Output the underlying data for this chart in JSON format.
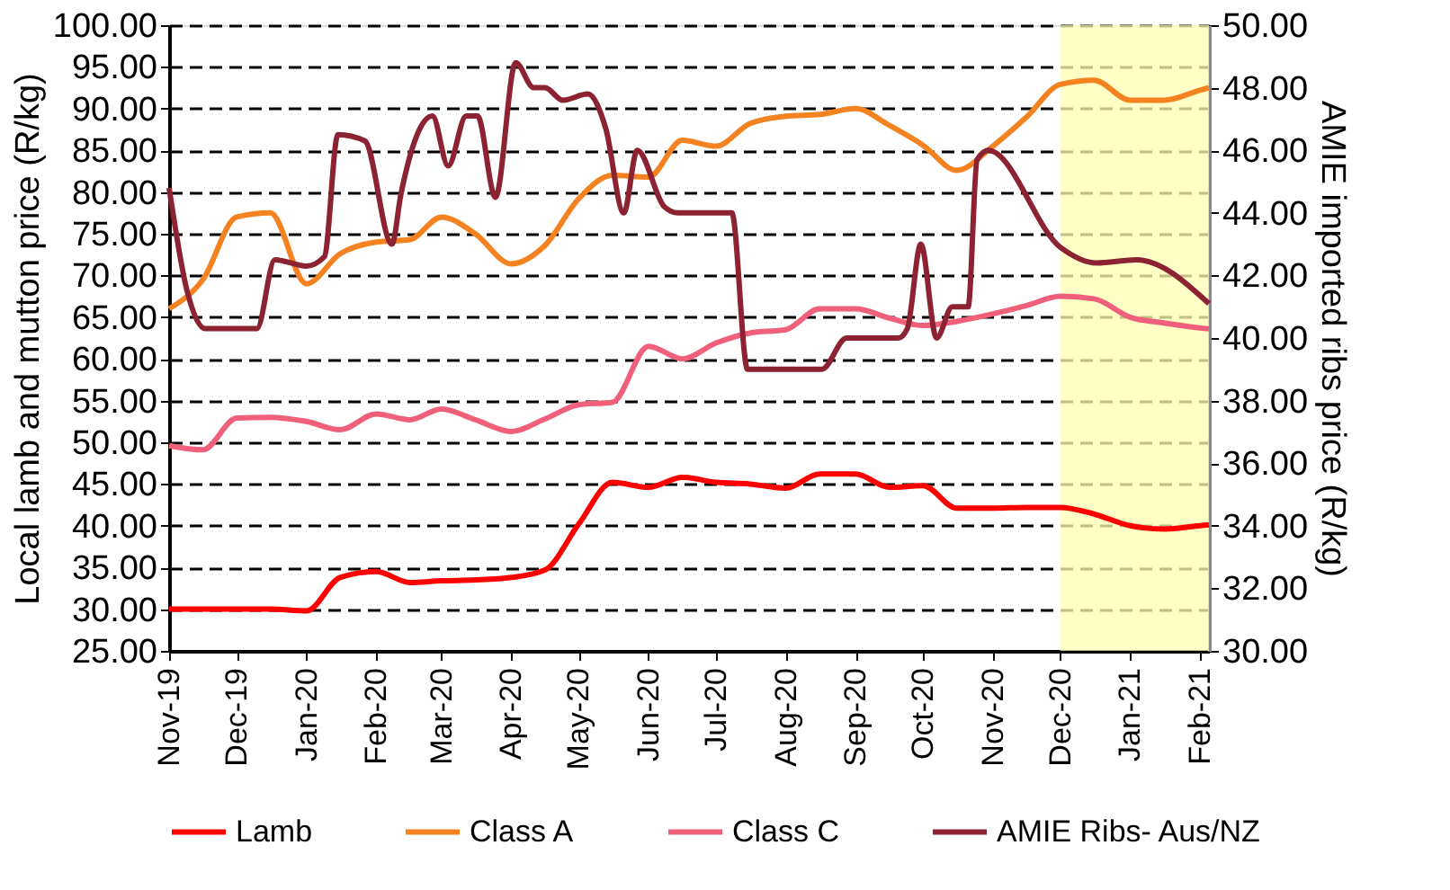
{
  "chart_data": {
    "type": "line",
    "ylabel": "Local lamb and mutton price (R/kg)",
    "y2label": "AMIE imported ribs price (R/kg)",
    "x": [
      "2019-11-01",
      "2019-11-16",
      "2019-12-01",
      "2019-12-16",
      "2020-01-01",
      "2020-01-16",
      "2020-02-01",
      "2020-02-16",
      "2020-03-01",
      "2020-03-16",
      "2020-04-01",
      "2020-04-16",
      "2020-05-01",
      "2020-05-16",
      "2020-06-01",
      "2020-06-16",
      "2020-07-01",
      "2020-07-16",
      "2020-08-01",
      "2020-08-16",
      "2020-09-01",
      "2020-09-16",
      "2020-10-01",
      "2020-10-16",
      "2020-11-01",
      "2020-11-16",
      "2020-12-01",
      "2020-12-16",
      "2021-01-01",
      "2021-01-16",
      "2021-02-01",
      "2021-02-05"
    ],
    "series": [
      {
        "name": "Lamb",
        "color": "#ff0000",
        "axis": "y",
        "values": [
          30.0,
          30.0,
          30.0,
          30.0,
          29.8,
          33.8,
          34.5,
          33.2,
          33.4,
          33.5,
          33.8,
          34.7,
          40.2,
          45.2,
          44.6,
          45.8,
          45.2,
          45.0,
          44.5,
          46.2,
          46.2,
          44.6,
          44.8,
          42.1,
          42.1,
          42.2,
          42.2,
          41.4,
          40.0,
          39.6,
          40.0,
          40.1
        ]
      },
      {
        "name": "Class A",
        "color": "#f58220",
        "axis": "y",
        "values": [
          66.0,
          69.5,
          77.0,
          77.5,
          69.0,
          72.6,
          74.0,
          74.3,
          77.0,
          75.0,
          71.4,
          73.6,
          79.2,
          82.0,
          81.8,
          86.2,
          85.5,
          88.2,
          89.1,
          89.3,
          90.0,
          88.0,
          85.6,
          82.6,
          85.5,
          89.0,
          92.9,
          93.4,
          91.0,
          91.0,
          92.2,
          92.5
        ]
      },
      {
        "name": "Class C",
        "color": "#f0607a",
        "axis": "y",
        "values": [
          49.6,
          49.1,
          52.9,
          53.0,
          52.5,
          51.5,
          53.4,
          52.7,
          54.0,
          52.7,
          51.3,
          52.8,
          54.5,
          54.8,
          61.5,
          60.0,
          61.9,
          63.1,
          63.5,
          66.0,
          66.0,
          64.9,
          64.0,
          64.5,
          65.4,
          66.4,
          67.5,
          67.2,
          65.0,
          64.3,
          63.7,
          63.6
        ]
      },
      {
        "name": "AMIE Ribs- Aus/NZ",
        "color": "#8b2332",
        "axis": "y2",
        "x": [
          "2019-11-01",
          "2019-11-09",
          "2019-11-17",
          "2019-12-10",
          "2019-12-18",
          "2020-01-01",
          "2020-01-09",
          "2020-01-15",
          "2020-01-27",
          "2020-02-08",
          "2020-02-12",
          "2020-02-26",
          "2020-03-04",
          "2020-03-12",
          "2020-03-17",
          "2020-03-25",
          "2020-04-03",
          "2020-04-11",
          "2020-04-16",
          "2020-04-24",
          "2020-05-05",
          "2020-05-13",
          "2020-05-21",
          "2020-05-27",
          "2020-06-08",
          "2020-06-14",
          "2020-07-08",
          "2020-07-15",
          "2020-08-17",
          "2020-08-28",
          "2020-09-20",
          "2020-09-24",
          "2020-09-30",
          "2020-10-07",
          "2020-10-14",
          "2020-10-21",
          "2020-10-25",
          "2020-10-30",
          "2020-12-01",
          "2020-12-17",
          "2021-01-04",
          "2021-02-05"
        ],
        "values": [
          44.8,
          41.5,
          40.3,
          40.3,
          42.5,
          42.3,
          42.6,
          46.5,
          46.3,
          43.0,
          44.6,
          47.1,
          45.5,
          47.1,
          47.1,
          44.5,
          48.8,
          48.0,
          48.0,
          47.6,
          47.8,
          46.7,
          44.0,
          46.0,
          44.2,
          44.0,
          44.0,
          39.0,
          39.0,
          40.0,
          40.0,
          40.3,
          43.0,
          40.0,
          41.0,
          41.0,
          45.7,
          46.0,
          42.9,
          42.4,
          42.5,
          41.1
        ]
      }
    ],
    "xlim": [
      "2019-11-01",
      "2021-02-05"
    ],
    "xticks": [
      {
        "value": "2019-11-01",
        "label": "Nov-19"
      },
      {
        "value": "2019-12-01",
        "label": "Dec-19"
      },
      {
        "value": "2020-01-01",
        "label": "Jan-20"
      },
      {
        "value": "2020-02-01",
        "label": "Feb-20"
      },
      {
        "value": "2020-03-01",
        "label": "Mar-20"
      },
      {
        "value": "2020-04-01",
        "label": "Apr-20"
      },
      {
        "value": "2020-05-01",
        "label": "May-20"
      },
      {
        "value": "2020-06-01",
        "label": "Jun-20"
      },
      {
        "value": "2020-07-01",
        "label": "Jul-20"
      },
      {
        "value": "2020-08-01",
        "label": "Aug-20"
      },
      {
        "value": "2020-09-01",
        "label": "Sep-20"
      },
      {
        "value": "2020-10-01",
        "label": "Oct-20"
      },
      {
        "value": "2020-11-01",
        "label": "Nov-20"
      },
      {
        "value": "2020-12-01",
        "label": "Dec-20"
      },
      {
        "value": "2021-01-01",
        "label": "Jan-21"
      },
      {
        "value": "2021-02-01",
        "label": "Feb-21"
      }
    ],
    "ylim": [
      25,
      100
    ],
    "yticks": [
      {
        "value": 25,
        "label": "25.00"
      },
      {
        "value": 30,
        "label": "30.00"
      },
      {
        "value": 35,
        "label": "35.00"
      },
      {
        "value": 40,
        "label": "40.00"
      },
      {
        "value": 45,
        "label": "45.00"
      },
      {
        "value": 50,
        "label": "50.00"
      },
      {
        "value": 55,
        "label": "55.00"
      },
      {
        "value": 60,
        "label": "60.00"
      },
      {
        "value": 65,
        "label": "65.00"
      },
      {
        "value": 70,
        "label": "70.00"
      },
      {
        "value": 75,
        "label": "75.00"
      },
      {
        "value": 80,
        "label": "80.00"
      },
      {
        "value": 85,
        "label": "85.00"
      },
      {
        "value": 90,
        "label": "90.00"
      },
      {
        "value": 95,
        "label": "95.00"
      },
      {
        "value": 100,
        "label": "100.00"
      }
    ],
    "y2lim": [
      30,
      50
    ],
    "y2ticks": [
      {
        "value": 30,
        "label": "30.00"
      },
      {
        "value": 32,
        "label": "32.00"
      },
      {
        "value": 34,
        "label": "34.00"
      },
      {
        "value": 36,
        "label": "36.00"
      },
      {
        "value": 38,
        "label": "38.00"
      },
      {
        "value": 40,
        "label": "40.00"
      },
      {
        "value": 42,
        "label": "42.00"
      },
      {
        "value": 44,
        "label": "44.00"
      },
      {
        "value": 46,
        "label": "46.00"
      },
      {
        "value": 48,
        "label": "48.00"
      },
      {
        "value": 50,
        "label": "50.00"
      }
    ],
    "bands": [
      {
        "axis": "x",
        "from": "2020-12-01",
        "to": "2021-02-05",
        "color": "#ffffb3"
      }
    ],
    "grid": "y",
    "legend": "bottom",
    "marker": "none",
    "line_style": "solid"
  }
}
